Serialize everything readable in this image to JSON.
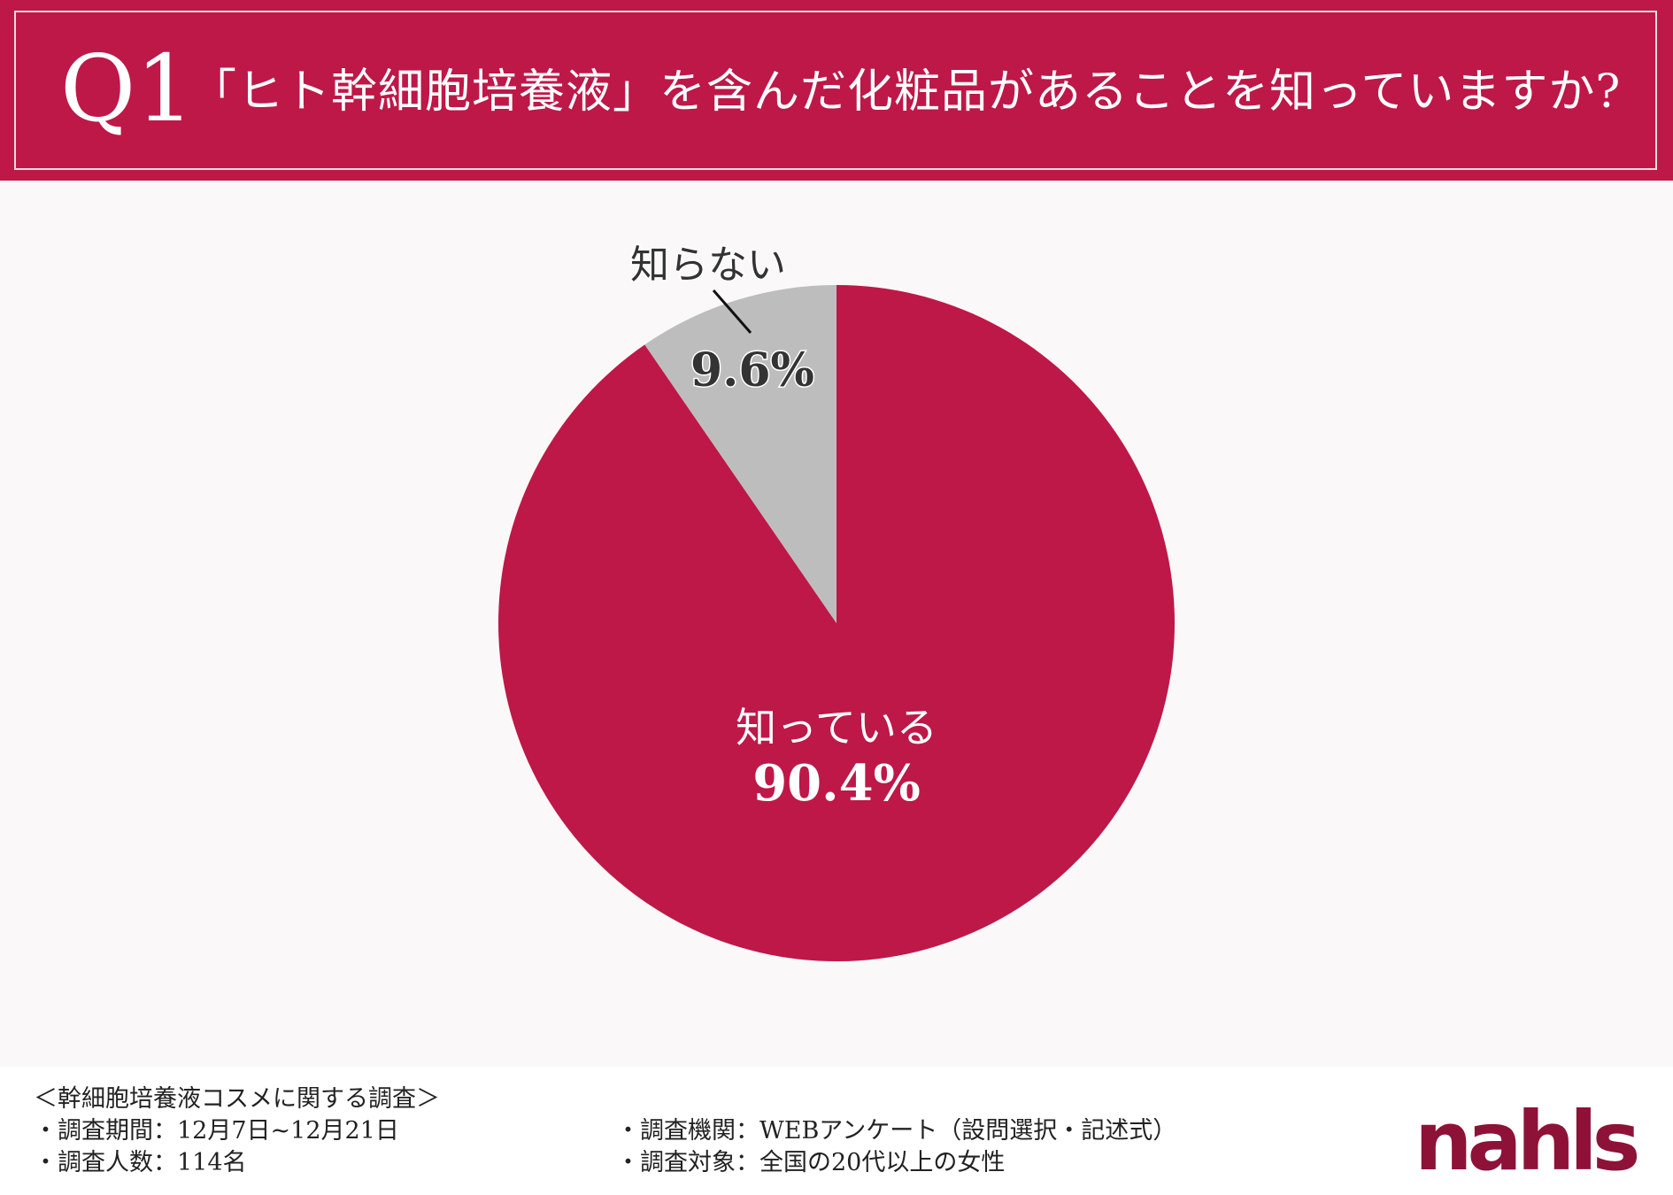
{
  "header": {
    "q_number": "Q1",
    "question": "「ヒト幹細胞培養液」を含んだ化粧品があることを知っていますか?"
  },
  "colors": {
    "accent": "#be1848",
    "slice_known": "#be1848",
    "slice_unknown": "#bdbdbd",
    "background": "#fbf8f9"
  },
  "chart_data": {
    "type": "pie",
    "title": "",
    "slices": [
      {
        "label": "知っている",
        "value": 90.4,
        "display": "90.4%",
        "color": "#be1848"
      },
      {
        "label": "知らない",
        "value": 9.6,
        "display": "9.6%",
        "color": "#bdbdbd"
      }
    ],
    "start": "12 o'clock",
    "direction": "clockwise"
  },
  "footer": {
    "survey_title": "＜幹細胞培養液コスメに関する調査＞",
    "period": "・調査期間：12月7日~12月21日",
    "respondents": "・調査人数：114名",
    "organization": "・調査機関：WEBアンケート（設問選択・記述式）",
    "target": "・調査対象：全国の20代以上の女性"
  },
  "logo": {
    "text": "nahls"
  }
}
